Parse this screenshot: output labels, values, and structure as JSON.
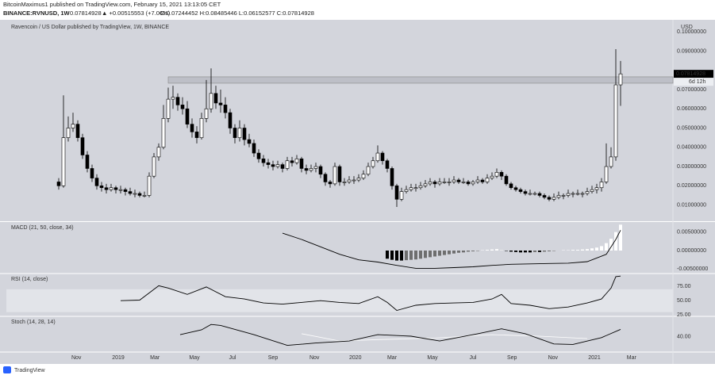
{
  "header": {
    "line1": "BitcoinMaximus1 published on TradingView.com, February 15, 2021 13:13:05 CET",
    "symbol": "BINANCE:RVNUSD, 1W",
    "last": "0.07814928",
    "change": "▲ +0.00515553 (+7.06%)",
    "ohlc": "O:0.07244452 H:0.08485446 L:0.06152577 C:0.07814928"
  },
  "footer": {
    "logo": "TradingView"
  },
  "chart_data": [
    {
      "type": "candlestick",
      "title": "Ravencoin / US Dollar published by TradingView, 1W, BINANCE",
      "y_unit": "USD",
      "countdown": "6d 12h",
      "xlim": [
        -11,
        129
      ],
      "ylim": [
        0.002,
        0.105
      ],
      "yticks": [
        {
          "value": 0.01,
          "label": "0.01000000"
        },
        {
          "value": 0.02,
          "label": "0.02000000"
        },
        {
          "value": 0.03,
          "label": "0.03000000"
        },
        {
          "value": 0.04,
          "label": "0.04000000"
        },
        {
          "value": 0.05,
          "label": "0.05000000"
        },
        {
          "value": 0.06,
          "label": "0.06000000"
        },
        {
          "value": 0.07,
          "label": "0.07000000"
        },
        {
          "value": 0.09,
          "label": "0.09000000"
        },
        {
          "value": 0.1,
          "label": "0.10000000"
        }
      ],
      "xticks": [
        {
          "value": 3.7,
          "label": "Nov"
        },
        {
          "value": 12.5,
          "label": "2019"
        },
        {
          "value": 20.2,
          "label": "Mar"
        },
        {
          "value": 28.5,
          "label": "May"
        },
        {
          "value": 36.5,
          "label": "Jul"
        },
        {
          "value": 45,
          "label": "Sep"
        },
        {
          "value": 53.7,
          "label": "Nov"
        },
        {
          "value": 62.3,
          "label": "2020"
        },
        {
          "value": 70,
          "label": "Mar"
        },
        {
          "value": 78.5,
          "label": "May"
        },
        {
          "value": 87,
          "label": "Jul"
        },
        {
          "value": 95.2,
          "label": "Sep"
        },
        {
          "value": 103.8,
          "label": "Nov"
        },
        {
          "value": 112.5,
          "label": "2021"
        },
        {
          "value": 120.3,
          "label": "Mar"
        }
      ],
      "zone": {
        "x_start": 23,
        "low": 0.0733,
        "high": 0.0766
      },
      "up_color": "#ffffff",
      "down_color": "#000000",
      "candles": [
        [
          0.022,
          0.024,
          0.018,
          0.02
        ],
        [
          0.02,
          0.067,
          0.019,
          0.045
        ],
        [
          0.045,
          0.056,
          0.043,
          0.05
        ],
        [
          0.05,
          0.058,
          0.048,
          0.052
        ],
        [
          0.052,
          0.054,
          0.043,
          0.045
        ],
        [
          0.045,
          0.047,
          0.034,
          0.036
        ],
        [
          0.036,
          0.038,
          0.027,
          0.029
        ],
        [
          0.029,
          0.031,
          0.022,
          0.024
        ],
        [
          0.024,
          0.026,
          0.018,
          0.02
        ],
        [
          0.02,
          0.022,
          0.017,
          0.019
        ],
        [
          0.019,
          0.021,
          0.016,
          0.018
        ],
        [
          0.018,
          0.021,
          0.017,
          0.019
        ],
        [
          0.019,
          0.02,
          0.016,
          0.018
        ],
        [
          0.018,
          0.02,
          0.016,
          0.018
        ],
        [
          0.018,
          0.019,
          0.015,
          0.017
        ],
        [
          0.017,
          0.019,
          0.015,
          0.016
        ],
        [
          0.016,
          0.018,
          0.014,
          0.016
        ],
        [
          0.016,
          0.017,
          0.014,
          0.015
        ],
        [
          0.015,
          0.017,
          0.014,
          0.015
        ],
        [
          0.015,
          0.027,
          0.014,
          0.025
        ],
        [
          0.025,
          0.037,
          0.024,
          0.035
        ],
        [
          0.035,
          0.042,
          0.033,
          0.04
        ],
        [
          0.04,
          0.062,
          0.039,
          0.055
        ],
        [
          0.055,
          0.071,
          0.053,
          0.065
        ],
        [
          0.065,
          0.072,
          0.06,
          0.066
        ],
        [
          0.066,
          0.068,
          0.059,
          0.062
        ],
        [
          0.062,
          0.066,
          0.057,
          0.06
        ],
        [
          0.06,
          0.064,
          0.05,
          0.052
        ],
        [
          0.052,
          0.055,
          0.045,
          0.048
        ],
        [
          0.048,
          0.051,
          0.042,
          0.045
        ],
        [
          0.045,
          0.058,
          0.044,
          0.055
        ],
        [
          0.055,
          0.075,
          0.053,
          0.06
        ],
        [
          0.06,
          0.081,
          0.058,
          0.068
        ],
        [
          0.068,
          0.072,
          0.06,
          0.063
        ],
        [
          0.063,
          0.07,
          0.058,
          0.062
        ],
        [
          0.062,
          0.066,
          0.055,
          0.058
        ],
        [
          0.058,
          0.06,
          0.047,
          0.05
        ],
        [
          0.05,
          0.052,
          0.042,
          0.045
        ],
        [
          0.045,
          0.054,
          0.043,
          0.05
        ],
        [
          0.05,
          0.052,
          0.041,
          0.044
        ],
        [
          0.044,
          0.047,
          0.04,
          0.042
        ],
        [
          0.042,
          0.044,
          0.035,
          0.037
        ],
        [
          0.037,
          0.039,
          0.032,
          0.034
        ],
        [
          0.034,
          0.036,
          0.03,
          0.032
        ],
        [
          0.032,
          0.034,
          0.029,
          0.031
        ],
        [
          0.031,
          0.033,
          0.028,
          0.03
        ],
        [
          0.03,
          0.033,
          0.029,
          0.031
        ],
        [
          0.031,
          0.032,
          0.027,
          0.029
        ],
        [
          0.029,
          0.035,
          0.028,
          0.033
        ],
        [
          0.033,
          0.035,
          0.03,
          0.032
        ],
        [
          0.032,
          0.036,
          0.031,
          0.034
        ],
        [
          0.034,
          0.035,
          0.027,
          0.029
        ],
        [
          0.029,
          0.031,
          0.026,
          0.028
        ],
        [
          0.028,
          0.031,
          0.027,
          0.029
        ],
        [
          0.029,
          0.032,
          0.027,
          0.03
        ],
        [
          0.03,
          0.031,
          0.024,
          0.026
        ],
        [
          0.026,
          0.027,
          0.02,
          0.022
        ],
        [
          0.022,
          0.023,
          0.019,
          0.021
        ],
        [
          0.021,
          0.032,
          0.02,
          0.03
        ],
        [
          0.03,
          0.031,
          0.02,
          0.022
        ],
        [
          0.022,
          0.024,
          0.02,
          0.022
        ],
        [
          0.022,
          0.025,
          0.021,
          0.023
        ],
        [
          0.023,
          0.025,
          0.021,
          0.023
        ],
        [
          0.023,
          0.026,
          0.022,
          0.024
        ],
        [
          0.024,
          0.028,
          0.023,
          0.026
        ],
        [
          0.026,
          0.032,
          0.025,
          0.03
        ],
        [
          0.03,
          0.035,
          0.029,
          0.033
        ],
        [
          0.033,
          0.041,
          0.032,
          0.037
        ],
        [
          0.037,
          0.038,
          0.031,
          0.033
        ],
        [
          0.033,
          0.034,
          0.027,
          0.029
        ],
        [
          0.029,
          0.03,
          0.018,
          0.02
        ],
        [
          0.02,
          0.021,
          0.009,
          0.013
        ],
        [
          0.013,
          0.019,
          0.012,
          0.017
        ],
        [
          0.017,
          0.02,
          0.016,
          0.018
        ],
        [
          0.018,
          0.021,
          0.017,
          0.019
        ],
        [
          0.019,
          0.021,
          0.017,
          0.019
        ],
        [
          0.019,
          0.022,
          0.018,
          0.02
        ],
        [
          0.02,
          0.023,
          0.019,
          0.021
        ],
        [
          0.021,
          0.024,
          0.02,
          0.022
        ],
        [
          0.022,
          0.023,
          0.019,
          0.021
        ],
        [
          0.021,
          0.024,
          0.02,
          0.022
        ],
        [
          0.022,
          0.024,
          0.021,
          0.022
        ],
        [
          0.022,
          0.024,
          0.02,
          0.022
        ],
        [
          0.022,
          0.025,
          0.021,
          0.023
        ],
        [
          0.023,
          0.024,
          0.021,
          0.022
        ],
        [
          0.022,
          0.024,
          0.021,
          0.022
        ],
        [
          0.022,
          0.023,
          0.02,
          0.021
        ],
        [
          0.021,
          0.023,
          0.02,
          0.022
        ],
        [
          0.022,
          0.025,
          0.021,
          0.023
        ],
        [
          0.023,
          0.024,
          0.021,
          0.022
        ],
        [
          0.022,
          0.026,
          0.021,
          0.024
        ],
        [
          0.024,
          0.027,
          0.023,
          0.025
        ],
        [
          0.025,
          0.029,
          0.024,
          0.027
        ],
        [
          0.027,
          0.028,
          0.023,
          0.025
        ],
        [
          0.025,
          0.026,
          0.02,
          0.021
        ],
        [
          0.021,
          0.022,
          0.018,
          0.019
        ],
        [
          0.019,
          0.02,
          0.017,
          0.018
        ],
        [
          0.018,
          0.019,
          0.016,
          0.017
        ],
        [
          0.017,
          0.018,
          0.015,
          0.016
        ],
        [
          0.016,
          0.018,
          0.015,
          0.016
        ],
        [
          0.016,
          0.017,
          0.015,
          0.016
        ],
        [
          0.016,
          0.017,
          0.014,
          0.015
        ],
        [
          0.015,
          0.016,
          0.013,
          0.014
        ],
        [
          0.014,
          0.015,
          0.012,
          0.013
        ],
        [
          0.013,
          0.016,
          0.012,
          0.014
        ],
        [
          0.014,
          0.017,
          0.013,
          0.015
        ],
        [
          0.015,
          0.016,
          0.013,
          0.015
        ],
        [
          0.015,
          0.018,
          0.014,
          0.016
        ],
        [
          0.016,
          0.017,
          0.014,
          0.016
        ],
        [
          0.016,
          0.018,
          0.015,
          0.016
        ],
        [
          0.016,
          0.017,
          0.014,
          0.016
        ],
        [
          0.016,
          0.019,
          0.015,
          0.017
        ],
        [
          0.017,
          0.02,
          0.016,
          0.018
        ],
        [
          0.018,
          0.021,
          0.016,
          0.019
        ],
        [
          0.019,
          0.024,
          0.017,
          0.022
        ],
        [
          0.022,
          0.042,
          0.021,
          0.03
        ],
        [
          0.03,
          0.04,
          0.029,
          0.035
        ],
        [
          0.035,
          0.091,
          0.033,
          0.07244452
        ],
        [
          0.07244452,
          0.08485446,
          0.06152577,
          0.07814928
        ]
      ]
    },
    {
      "type": "macd",
      "title": "MACD (21, 50, close, 34)",
      "ylim": [
        -0.006,
        0.0075
      ],
      "yticks": [
        {
          "value": 0.005,
          "label": "0.00500000"
        },
        {
          "value": 0,
          "label": "0.00000000"
        },
        {
          "value": -0.005,
          "label": "-0.00500000"
        }
      ],
      "line": {
        "color": "#000000",
        "x": [
          47,
          51,
          55,
          59,
          63,
          67,
          71,
          75,
          79,
          83,
          87,
          91,
          95,
          99,
          103,
          107,
          111,
          115,
          117,
          118
        ],
        "values": [
          0.0047,
          0.003,
          0.001,
          -0.001,
          -0.0025,
          -0.0031,
          -0.004,
          -0.0048,
          -0.0048,
          -0.0046,
          -0.0044,
          -0.004,
          -0.0037,
          -0.0036,
          -0.0035,
          -0.0034,
          -0.003,
          -0.001,
          0.003,
          0.0055
        ]
      },
      "histogram": {
        "colors": [
          "#ffffff",
          "#e8e8e8",
          "#000000",
          "#6e6e6e"
        ],
        "x": [
          69,
          70,
          71,
          72,
          73,
          74,
          75,
          76,
          77,
          78,
          79,
          80,
          81,
          82,
          83,
          84,
          85,
          86,
          87,
          88,
          89,
          90,
          91,
          92,
          93,
          94,
          95,
          96,
          97,
          98,
          99,
          100,
          101,
          102,
          103,
          104,
          105,
          106,
          107,
          108,
          109,
          110,
          111,
          112,
          113,
          114,
          115,
          116,
          117,
          118
        ],
        "values": [
          -0.0022,
          -0.0025,
          -0.0027,
          -0.0027,
          -0.0026,
          -0.0025,
          -0.0024,
          -0.0022,
          -0.002,
          -0.0018,
          -0.0016,
          -0.0014,
          -0.0012,
          -0.001,
          -0.0008,
          -0.0006,
          -0.0005,
          -0.0003,
          -0.0002,
          -0.0001,
          0.0001,
          0.0002,
          0.0003,
          0.0004,
          0.0002,
          -0.0001,
          -0.0003,
          -0.0004,
          -0.0005,
          -0.0005,
          -0.0005,
          -0.0004,
          -0.0004,
          -0.0003,
          -0.0002,
          -0.0001,
          0,
          0.0001,
          0.0001,
          0.0002,
          0.0002,
          0.0003,
          0.0004,
          0.0006,
          0.0008,
          0.0012,
          0.002,
          0.0032,
          0.005,
          0.007
        ]
      }
    },
    {
      "type": "rsi",
      "title": "RSI (14, close)",
      "ylim": [
        24,
        96
      ],
      "band": [
        30,
        70
      ],
      "band_color": "#e2e4e9",
      "yticks": [
        {
          "value": 75,
          "label": "75.00"
        },
        {
          "value": 50,
          "label": "50.00"
        },
        {
          "value": 25,
          "label": "25.00"
        }
      ],
      "line": {
        "color": "#000000",
        "x": [
          13,
          17,
          21,
          23,
          27,
          31,
          35,
          39,
          43,
          47,
          51,
          55,
          59,
          63,
          67,
          69,
          71,
          75,
          79,
          83,
          87,
          91,
          93,
          95,
          99,
          103,
          107,
          111,
          114,
          116,
          117,
          118
        ],
        "values": [
          50,
          51,
          76,
          72,
          61,
          74,
          57,
          53,
          46,
          44,
          47,
          50,
          47,
          45,
          57,
          47,
          33,
          42,
          45,
          46,
          47,
          53,
          61,
          45,
          42,
          36,
          39,
          46,
          53,
          72,
          92,
          93
        ]
      }
    },
    {
      "type": "stoch",
      "title": "Stoch (14, 28, 14)",
      "ylim": [
        10,
        80
      ],
      "yticks": [
        {
          "value": 40,
          "label": "40.00"
        }
      ],
      "k": {
        "color": "#000000",
        "x": [
          25.5,
          30,
          32,
          34,
          41,
          48,
          54,
          61,
          67,
          74,
          80,
          88,
          93,
          98,
          104,
          108,
          114,
          118
        ],
        "values": [
          44,
          54,
          65,
          63,
          44,
          22,
          27,
          31,
          44,
          41,
          31,
          46,
          56,
          46,
          25,
          24,
          38,
          55
        ]
      },
      "d": {
        "color": "#ffffff",
        "x": [
          51,
          59,
          67,
          79,
          91,
          101,
          111
        ],
        "values": [
          46,
          31,
          34,
          37,
          44,
          41,
          36
        ]
      }
    }
  ]
}
